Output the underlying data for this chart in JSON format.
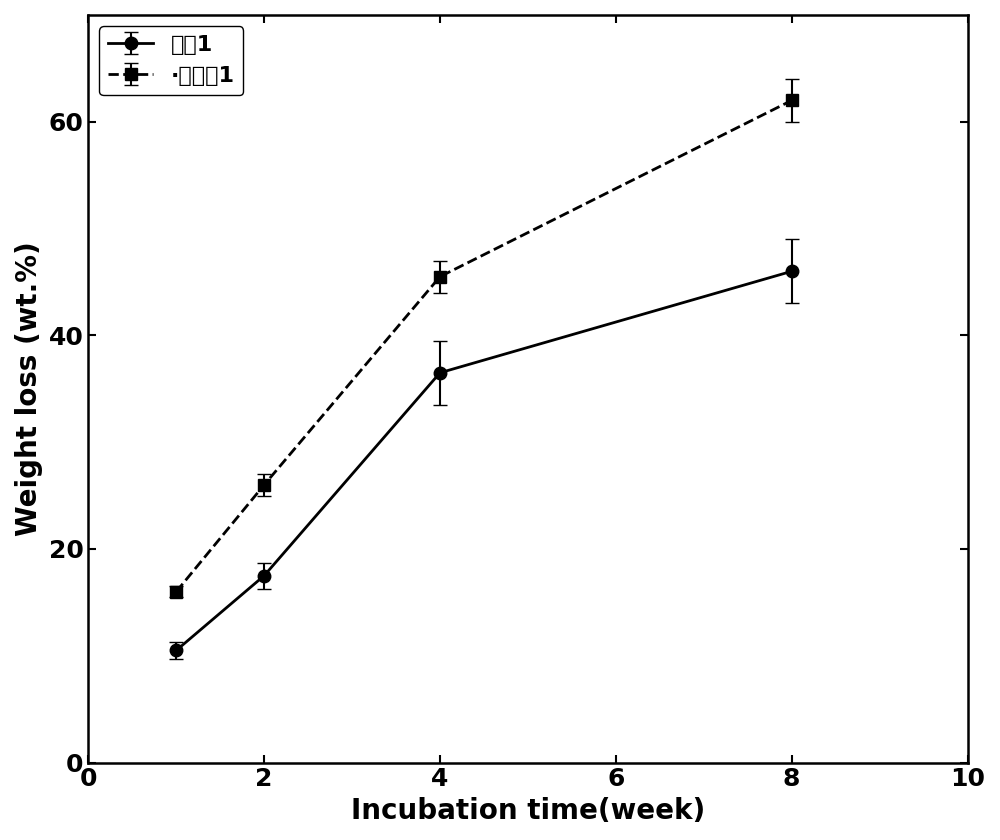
{
  "series1_label": "对比1",
  "series2_label": "·实施例1",
  "x": [
    1,
    2,
    4,
    8
  ],
  "series1_y": [
    10.5,
    17.5,
    36.5,
    46.0
  ],
  "series1_yerr": [
    0.8,
    1.2,
    3.0,
    3.0
  ],
  "series2_y": [
    16.0,
    26.0,
    45.5,
    62.0
  ],
  "series2_yerr": [
    0.5,
    1.0,
    1.5,
    2.0
  ],
  "xlabel": "Incubation time(week)",
  "ylabel": "Weight loss (wt.%)",
  "xlim": [
    0,
    10
  ],
  "ylim": [
    0,
    70
  ],
  "xticks": [
    0,
    2,
    4,
    6,
    8,
    10
  ],
  "yticks": [
    0,
    20,
    40,
    60
  ],
  "color": "#000000",
  "linewidth": 2.0,
  "markersize": 9,
  "capsize": 5,
  "elinewidth": 1.5,
  "legend_loc": "upper left",
  "label_fontsize": 20,
  "tick_fontsize": 18,
  "legend_fontsize": 16
}
